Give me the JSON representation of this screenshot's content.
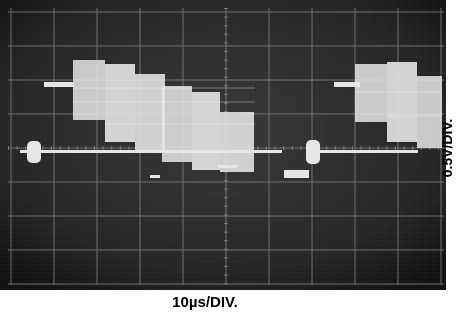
{
  "oscilloscope": {
    "horizontal_scale": "10µs/DIV.",
    "vertical_scale": "0.5V/DIV.",
    "screen_color": "#2a2a2a",
    "trace_color": "#e6e6e6",
    "grid_color": "#8a8a8a"
  }
}
